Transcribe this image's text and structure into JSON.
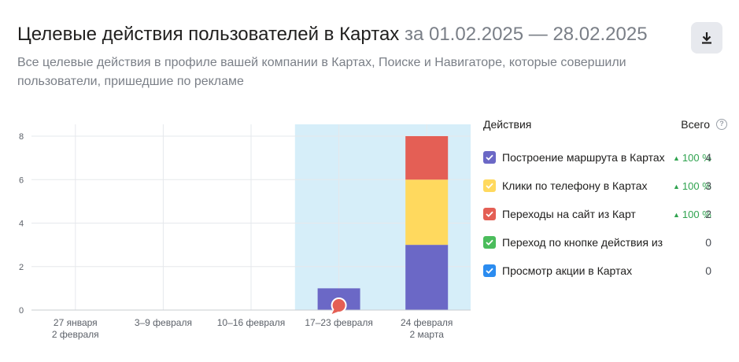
{
  "header": {
    "title": "Целевые действия пользователей в Картах",
    "period": "за 01.02.2025 — 28.02.2025",
    "subtitle": "Все целевые действия в профиле вашей компании в Картах, Поиске и Навигаторе, которые совершили пользователи, пришедшие по рекламе",
    "download_icon": "download-icon"
  },
  "legend": {
    "actions_header": "Действия",
    "total_header": "Всего",
    "help_icon": "question-icon",
    "items": [
      {
        "label": "Построение маршрута в Картах",
        "color": "#6b68c6",
        "delta": "100 %",
        "count": "4"
      },
      {
        "label": "Клики по телефону в Картах",
        "color": "#ffd95e",
        "delta": "100 %",
        "count": "3"
      },
      {
        "label": "Переходы на сайт из Карт",
        "color": "#e45f55",
        "delta": "100 %",
        "count": "2"
      },
      {
        "label": "Переход по кнопке действия из Карт",
        "color": "#4bbd5c",
        "delta": "",
        "count": "0"
      },
      {
        "label": "Просмотр акции в Картах",
        "color": "#2b8cf0",
        "delta": "",
        "count": "0"
      }
    ]
  },
  "chart_data": {
    "type": "bar",
    "stacked": true,
    "categories": [
      [
        "27 января",
        "2 февраля"
      ],
      [
        "3–9 февраля"
      ],
      [
        "10–16 февраля"
      ],
      [
        "17–23 февраля"
      ],
      [
        "24 февраля",
        "2 марта"
      ]
    ],
    "highlighted_categories": [
      3,
      4
    ],
    "series": [
      {
        "name": "Построение маршрута в Картах",
        "color": "#6b68c6",
        "values": [
          0,
          0,
          0,
          1,
          3
        ]
      },
      {
        "name": "Клики по телефону в Картах",
        "color": "#ffd95e",
        "values": [
          0,
          0,
          0,
          0,
          3
        ]
      },
      {
        "name": "Переходы на сайт из Карт",
        "color": "#e45f55",
        "values": [
          0,
          0,
          0,
          0,
          2
        ]
      }
    ],
    "yticks": [
      0,
      2,
      4,
      6,
      8
    ],
    "ylim": [
      0,
      8
    ],
    "grid": true,
    "annotation_marker": {
      "category": 3,
      "color": "#e45f55"
    }
  }
}
